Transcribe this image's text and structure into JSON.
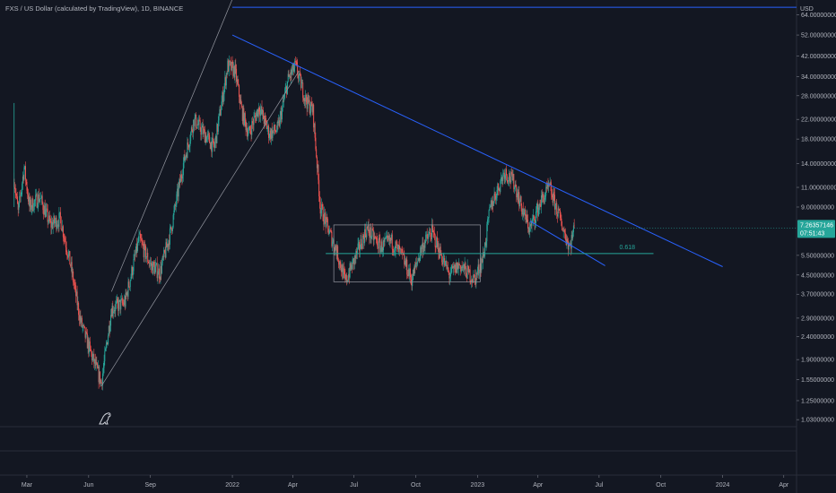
{
  "header": {
    "title": "FXS / US Dollar (calculated by TradingView), 1D, BINANCE"
  },
  "price_axis": {
    "currency_label": "USD"
  },
  "colors": {
    "background": "#131722",
    "up_candle": "#26a69a",
    "down_candle": "#ef5350",
    "trendline": "#2962ff",
    "channel": "#9598a1",
    "fib_line": "#26a69a",
    "price_tag": "#26a69a"
  },
  "price_tag": {
    "price": "7.26357146",
    "countdown": "07:51:43",
    "value": 7.26357146
  },
  "chart_data": {
    "type": "candlestick",
    "y_scale": "log",
    "ylim": [
      0.95,
      75
    ],
    "y_ticks": [
      {
        "value": 64,
        "label": "64.00000000"
      },
      {
        "value": 52,
        "label": "52.00000000"
      },
      {
        "value": 42,
        "label": "42.00000000"
      },
      {
        "value": 34,
        "label": "34.00000000"
      },
      {
        "value": 28,
        "label": "28.00000000"
      },
      {
        "value": 22,
        "label": "22.00000000"
      },
      {
        "value": 18,
        "label": "18.00000000"
      },
      {
        "value": 14,
        "label": "14.00000000"
      },
      {
        "value": 11,
        "label": "11.00000000"
      },
      {
        "value": 9,
        "label": "9.00000000"
      },
      {
        "value": 5.5,
        "label": "5.50000000"
      },
      {
        "value": 4.5,
        "label": "4.50000000"
      },
      {
        "value": 3.7,
        "label": "3.70000000"
      },
      {
        "value": 2.9,
        "label": "2.90000000"
      },
      {
        "value": 2.4,
        "label": "2.40000000"
      },
      {
        "value": 1.9,
        "label": "1.90000000"
      },
      {
        "value": 1.55,
        "label": "1.55000000"
      },
      {
        "value": 1.25,
        "label": "1.25000000"
      },
      {
        "value": 1.03,
        "label": "1.03000000"
      }
    ],
    "x_ticks": [
      {
        "date": "2021-03-01",
        "label": "Mar"
      },
      {
        "date": "2021-06-01",
        "label": "Jun"
      },
      {
        "date": "2021-09-01",
        "label": "Sep"
      },
      {
        "date": "2022-01-01",
        "label": "2022"
      },
      {
        "date": "2022-04-01",
        "label": "Apr"
      },
      {
        "date": "2022-07-01",
        "label": "Jul"
      },
      {
        "date": "2022-10-01",
        "label": "Oct"
      },
      {
        "date": "2023-01-01",
        "label": "2023"
      },
      {
        "date": "2023-04-01",
        "label": "Apr"
      },
      {
        "date": "2023-07-01",
        "label": "Jul"
      },
      {
        "date": "2023-10-01",
        "label": "Oct"
      },
      {
        "date": "2024-01-01",
        "label": "2024"
      },
      {
        "date": "2024-04-01",
        "label": "Apr"
      }
    ],
    "xlim": [
      "2021-01-20",
      "2024-04-20"
    ],
    "price_path": [
      {
        "date": "2021-02-10",
        "price": 12.0
      },
      {
        "date": "2021-02-16",
        "price": 8.5
      },
      {
        "date": "2021-02-25",
        "price": 13.5
      },
      {
        "date": "2021-03-05",
        "price": 9.0
      },
      {
        "date": "2021-03-20",
        "price": 10.0
      },
      {
        "date": "2021-04-05",
        "price": 7.5
      },
      {
        "date": "2021-04-20",
        "price": 8.0
      },
      {
        "date": "2021-05-05",
        "price": 5.0
      },
      {
        "date": "2021-05-20",
        "price": 2.8
      },
      {
        "date": "2021-06-05",
        "price": 2.0
      },
      {
        "date": "2021-06-20",
        "price": 1.5
      },
      {
        "date": "2021-07-05",
        "price": 3.2
      },
      {
        "date": "2021-07-25",
        "price": 3.4
      },
      {
        "date": "2021-08-15",
        "price": 6.5
      },
      {
        "date": "2021-09-01",
        "price": 5.0
      },
      {
        "date": "2021-09-15",
        "price": 4.6
      },
      {
        "date": "2021-10-01",
        "price": 7.0
      },
      {
        "date": "2021-10-20",
        "price": 14.0
      },
      {
        "date": "2021-11-05",
        "price": 22.0
      },
      {
        "date": "2021-11-20",
        "price": 19.0
      },
      {
        "date": "2021-12-05",
        "price": 16.5
      },
      {
        "date": "2021-12-25",
        "price": 38.0
      },
      {
        "date": "2022-01-05",
        "price": 36.0
      },
      {
        "date": "2022-01-15",
        "price": 24.0
      },
      {
        "date": "2022-01-25",
        "price": 19.0
      },
      {
        "date": "2022-02-10",
        "price": 25.0
      },
      {
        "date": "2022-02-25",
        "price": 19.0
      },
      {
        "date": "2022-03-10",
        "price": 20.0
      },
      {
        "date": "2022-03-25",
        "price": 33.0
      },
      {
        "date": "2022-04-05",
        "price": 38.0
      },
      {
        "date": "2022-04-20",
        "price": 27.0
      },
      {
        "date": "2022-05-01",
        "price": 24.0
      },
      {
        "date": "2022-05-12",
        "price": 9.0
      },
      {
        "date": "2022-05-25",
        "price": 7.0
      },
      {
        "date": "2022-06-05",
        "price": 5.8
      },
      {
        "date": "2022-06-18",
        "price": 4.2
      },
      {
        "date": "2022-07-01",
        "price": 5.2
      },
      {
        "date": "2022-07-20",
        "price": 7.2
      },
      {
        "date": "2022-08-10",
        "price": 6.0
      },
      {
        "date": "2022-08-25",
        "price": 6.4
      },
      {
        "date": "2022-09-10",
        "price": 5.5
      },
      {
        "date": "2022-09-25",
        "price": 4.3
      },
      {
        "date": "2022-10-10",
        "price": 6.0
      },
      {
        "date": "2022-10-25",
        "price": 7.0
      },
      {
        "date": "2022-11-08",
        "price": 5.5
      },
      {
        "date": "2022-11-20",
        "price": 4.5
      },
      {
        "date": "2022-12-05",
        "price": 5.0
      },
      {
        "date": "2022-12-28",
        "price": 4.3
      },
      {
        "date": "2023-01-10",
        "price": 5.5
      },
      {
        "date": "2023-01-20",
        "price": 9.0
      },
      {
        "date": "2023-02-01",
        "price": 11.0
      },
      {
        "date": "2023-02-10",
        "price": 13.0
      },
      {
        "date": "2023-02-25",
        "price": 11.5
      },
      {
        "date": "2023-03-10",
        "price": 8.5
      },
      {
        "date": "2023-03-20",
        "price": 7.2
      },
      {
        "date": "2023-04-05",
        "price": 9.5
      },
      {
        "date": "2023-04-18",
        "price": 11.0
      },
      {
        "date": "2023-05-01",
        "price": 8.5
      },
      {
        "date": "2023-05-10",
        "price": 7.0
      },
      {
        "date": "2023-05-18",
        "price": 6.0
      },
      {
        "date": "2023-05-25",
        "price": 7.26
      }
    ],
    "annotations": {
      "horizontal_line": {
        "date_from": "2022-01-01",
        "date_to": "2024-04-20",
        "price": 69
      },
      "channel_upper": {
        "from": {
          "date": "2021-07-05",
          "price": 3.8
        },
        "to": {
          "date": "2022-01-01",
          "price": 75
        }
      },
      "channel_lower": {
        "from": {
          "date": "2021-06-20",
          "price": 1.45
        },
        "to": {
          "date": "2022-04-10",
          "price": 36
        }
      },
      "descending_trendline": {
        "from": {
          "date": "2022-01-01",
          "price": 52
        },
        "to": {
          "date": "2024-01-01",
          "price": 4.9
        }
      },
      "lower_trendline": {
        "from": {
          "date": "2023-03-20",
          "price": 7.8
        },
        "to": {
          "date": "2023-07-10",
          "price": 4.95
        }
      },
      "range_box": {
        "date_from": "2022-06-01",
        "date_to": "2023-01-05",
        "price_top": 7.5,
        "price_bottom": 4.2
      },
      "fib_level": {
        "label": "0.618",
        "price": 5.6,
        "date_from": "2022-05-20",
        "date_to": "2023-09-20"
      }
    }
  }
}
